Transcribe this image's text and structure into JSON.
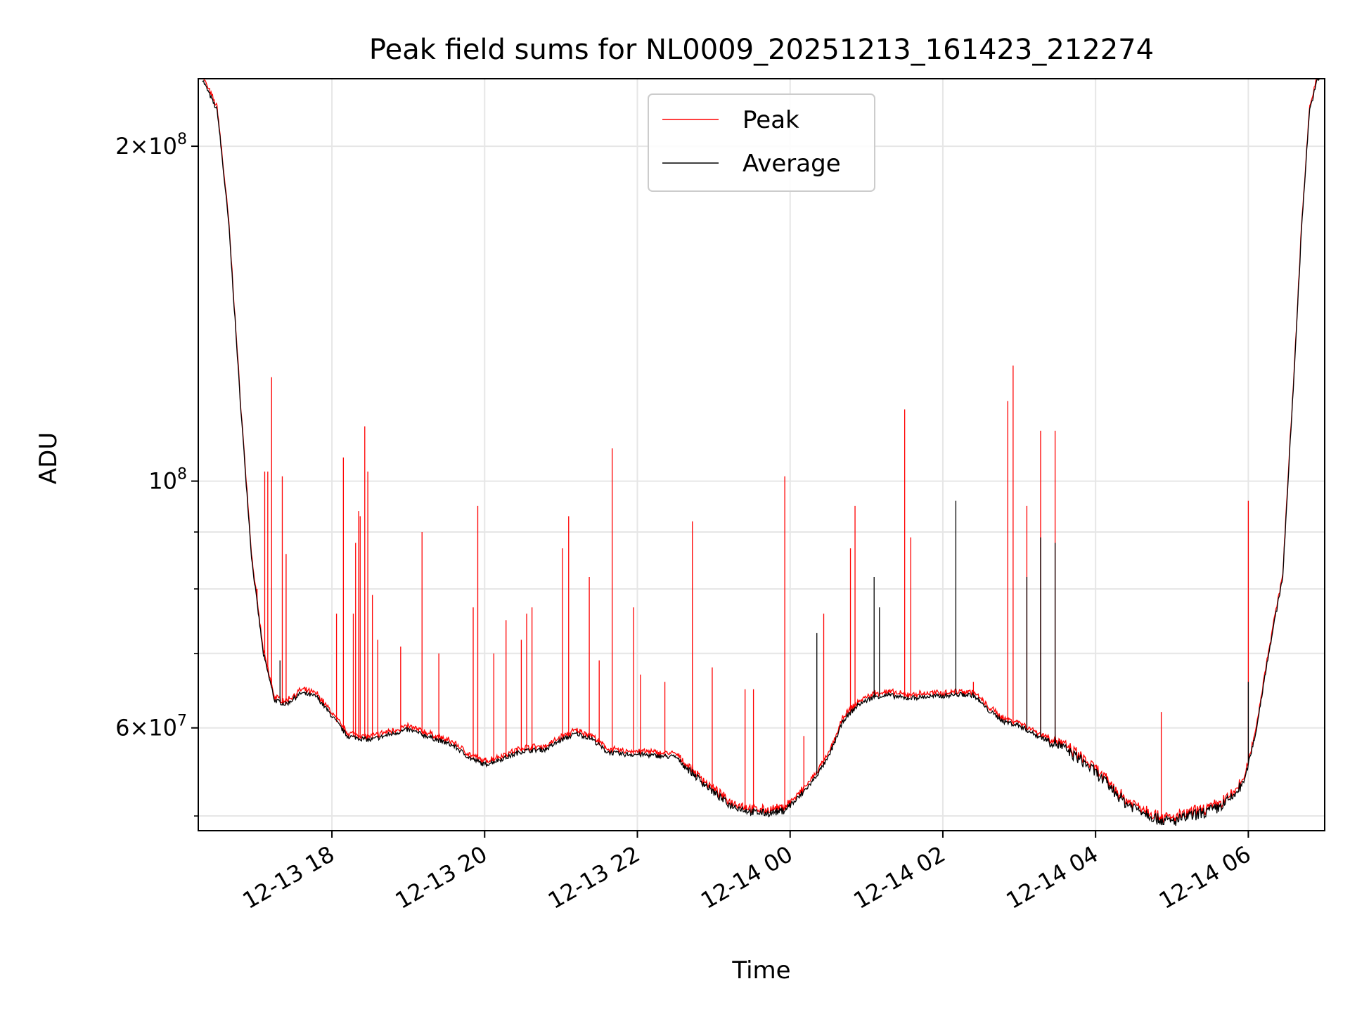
{
  "chart_data": {
    "type": "line",
    "title": "Peak field sums for NL0009_20251213_161423_212274",
    "xlabel": "Time",
    "ylabel": "ADU",
    "yscale": "log",
    "ylim": [
      48500000,
      230000000
    ],
    "xlim_hours_from_12_13_00": [
      16.25,
      31.0
    ],
    "x_ticks": [
      {
        "hour": 18,
        "label": "12-13 18"
      },
      {
        "hour": 20,
        "label": "12-13 20"
      },
      {
        "hour": 22,
        "label": "12-13 22"
      },
      {
        "hour": 24,
        "label": "12-14 00"
      },
      {
        "hour": 26,
        "label": "12-14 02"
      },
      {
        "hour": 28,
        "label": "12-14 04"
      },
      {
        "hour": 30,
        "label": "12-14 06"
      }
    ],
    "y_major_ticks": [
      {
        "value": 60000000,
        "mantissa": "6",
        "exponent": "7"
      },
      {
        "value": 100000000,
        "mantissa": "",
        "exponent": "8"
      },
      {
        "value": 200000000,
        "mantissa": "2",
        "exponent": "8"
      }
    ],
    "y_minor_ticks": [
      50000000,
      70000000,
      80000000,
      90000000,
      300000000
    ],
    "grid": true,
    "legend": {
      "position": "upper center",
      "entries": [
        {
          "name": "Peak",
          "color": "#ff0000"
        },
        {
          "name": "Average",
          "color": "#000000"
        }
      ]
    },
    "series": [
      {
        "name": "Average",
        "color": "#000000",
        "baseline": [
          [
            16.3,
            230000000
          ],
          [
            16.5,
            215000000
          ],
          [
            16.65,
            170000000
          ],
          [
            16.8,
            118000000
          ],
          [
            16.95,
            85000000
          ],
          [
            17.1,
            70000000
          ],
          [
            17.25,
            63500000
          ],
          [
            17.4,
            63000000
          ],
          [
            17.6,
            64500000
          ],
          [
            17.8,
            64000000
          ],
          [
            18.0,
            61500000
          ],
          [
            18.2,
            59000000
          ],
          [
            18.5,
            58500000
          ],
          [
            18.8,
            59300000
          ],
          [
            19.0,
            59800000
          ],
          [
            19.3,
            58800000
          ],
          [
            19.6,
            57800000
          ],
          [
            19.8,
            56400000
          ],
          [
            20.0,
            55600000
          ],
          [
            20.3,
            56500000
          ],
          [
            20.5,
            57200000
          ],
          [
            20.8,
            57400000
          ],
          [
            21.0,
            58500000
          ],
          [
            21.2,
            59300000
          ],
          [
            21.4,
            58700000
          ],
          [
            21.6,
            57100000
          ],
          [
            21.8,
            56800000
          ],
          [
            22.0,
            56800000
          ],
          [
            22.3,
            56600000
          ],
          [
            22.5,
            56500000
          ],
          [
            22.7,
            54800000
          ],
          [
            23.0,
            52500000
          ],
          [
            23.2,
            51200000
          ],
          [
            23.5,
            50400000
          ],
          [
            23.7,
            50300000
          ],
          [
            23.9,
            50500000
          ],
          [
            24.1,
            51800000
          ],
          [
            24.3,
            53800000
          ],
          [
            24.5,
            56400000
          ],
          [
            24.7,
            61000000
          ],
          [
            24.9,
            63000000
          ],
          [
            25.1,
            64000000
          ],
          [
            25.3,
            64200000
          ],
          [
            25.5,
            63800000
          ],
          [
            25.8,
            64000000
          ],
          [
            26.0,
            64100000
          ],
          [
            26.2,
            64300000
          ],
          [
            26.4,
            64200000
          ],
          [
            26.6,
            62200000
          ],
          [
            26.8,
            60800000
          ],
          [
            27.0,
            60300000
          ],
          [
            27.2,
            59200000
          ],
          [
            27.5,
            58000000
          ],
          [
            27.8,
            56200000
          ],
          [
            28.0,
            54700000
          ],
          [
            28.2,
            53000000
          ],
          [
            28.4,
            51300000
          ],
          [
            28.6,
            50600000
          ],
          [
            28.8,
            49700000
          ],
          [
            29.0,
            49400000
          ],
          [
            29.2,
            49900000
          ],
          [
            29.4,
            50300000
          ],
          [
            29.6,
            50800000
          ],
          [
            29.8,
            52000000
          ],
          [
            29.95,
            53800000
          ],
          [
            30.1,
            59500000
          ],
          [
            30.25,
            69000000
          ],
          [
            30.45,
            82000000
          ],
          [
            30.6,
            125000000
          ],
          [
            30.7,
            170000000
          ],
          [
            30.8,
            215000000
          ],
          [
            30.9,
            229000000
          ],
          [
            31.0,
            232000000
          ]
        ],
        "spikes": [
          [
            17.32,
            69000000
          ],
          [
            25.1,
            82000000
          ],
          [
            25.17,
            77000000
          ],
          [
            26.17,
            96000000
          ],
          [
            27.1,
            82000000
          ],
          [
            27.28,
            89000000
          ],
          [
            27.47,
            88000000
          ],
          [
            24.35,
            73000000
          ],
          [
            30.0,
            66000000
          ]
        ]
      },
      {
        "name": "Peak",
        "color": "#ff0000",
        "spikes": [
          [
            17.02,
            80000000
          ],
          [
            17.12,
            102000000
          ],
          [
            17.16,
            102000000
          ],
          [
            17.21,
            124000000
          ],
          [
            17.35,
            101000000
          ],
          [
            17.4,
            86000000
          ],
          [
            18.06,
            76000000
          ],
          [
            18.15,
            105000000
          ],
          [
            18.28,
            76000000
          ],
          [
            18.31,
            88000000
          ],
          [
            18.35,
            94000000
          ],
          [
            18.37,
            93000000
          ],
          [
            18.43,
            112000000
          ],
          [
            18.47,
            102000000
          ],
          [
            18.53,
            79000000
          ],
          [
            18.6,
            72000000
          ],
          [
            18.9,
            71000000
          ],
          [
            19.18,
            90000000
          ],
          [
            19.4,
            70000000
          ],
          [
            19.85,
            77000000
          ],
          [
            19.91,
            95000000
          ],
          [
            20.12,
            70000000
          ],
          [
            20.28,
            75000000
          ],
          [
            20.48,
            72000000
          ],
          [
            20.55,
            76000000
          ],
          [
            20.62,
            77000000
          ],
          [
            21.02,
            87000000
          ],
          [
            21.1,
            93000000
          ],
          [
            21.37,
            82000000
          ],
          [
            21.5,
            69000000
          ],
          [
            21.67,
            107000000
          ],
          [
            21.95,
            77000000
          ],
          [
            22.04,
            67000000
          ],
          [
            22.36,
            66000000
          ],
          [
            22.72,
            92000000
          ],
          [
            22.98,
            68000000
          ],
          [
            23.41,
            65000000
          ],
          [
            23.52,
            65000000
          ],
          [
            23.93,
            101000000
          ],
          [
            24.18,
            59000000
          ],
          [
            24.44,
            76000000
          ],
          [
            24.79,
            87000000
          ],
          [
            24.85,
            95000000
          ],
          [
            25.5,
            116000000
          ],
          [
            25.58,
            89000000
          ],
          [
            26.4,
            66000000
          ],
          [
            26.85,
            118000000
          ],
          [
            26.92,
            127000000
          ],
          [
            27.1,
            95000000
          ],
          [
            27.28,
            111000000
          ],
          [
            27.47,
            111000000
          ],
          [
            28.86,
            62000000
          ],
          [
            30.0,
            96000000
          ]
        ]
      }
    ]
  }
}
